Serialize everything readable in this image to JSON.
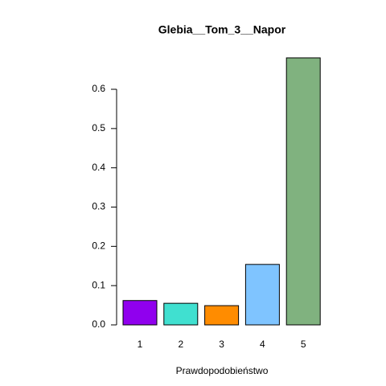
{
  "chart_data": {
    "type": "bar",
    "title": "Glebia__Tom_3__Napor",
    "x_label": "Prawdopodobieństwo",
    "categories": [
      "1",
      "2",
      "3",
      "4",
      "5"
    ],
    "values": [
      0.062,
      0.055,
      0.049,
      0.154,
      0.68
    ],
    "colors": [
      "#9000ee",
      "#40e0d0",
      "#ff8c00",
      "#7fc4ff",
      "#80b27f"
    ],
    "ylim": [
      0,
      0.7
    ],
    "yticks": [
      {
        "value": 0,
        "label": "0.0"
      },
      0.1,
      0.2,
      0.3,
      0.4,
      0.5,
      0.6
    ],
    "grid": false
  }
}
